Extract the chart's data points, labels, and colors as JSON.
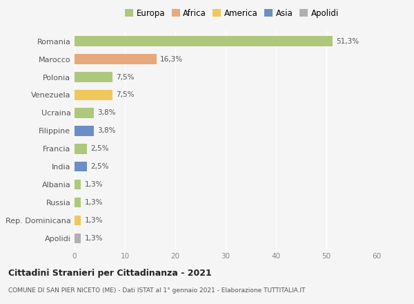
{
  "categories": [
    "Romania",
    "Marocco",
    "Polonia",
    "Venezuela",
    "Ucraina",
    "Filippine",
    "Francia",
    "India",
    "Albania",
    "Russia",
    "Rep. Dominicana",
    "Apolidi"
  ],
  "values": [
    51.3,
    16.3,
    7.5,
    7.5,
    3.8,
    3.8,
    2.5,
    2.5,
    1.3,
    1.3,
    1.3,
    1.3
  ],
  "labels": [
    "51,3%",
    "16,3%",
    "7,5%",
    "7,5%",
    "3,8%",
    "3,8%",
    "2,5%",
    "2,5%",
    "1,3%",
    "1,3%",
    "1,3%",
    "1,3%"
  ],
  "colors": [
    "#adc87a",
    "#e8a87c",
    "#adc87a",
    "#f0c75a",
    "#adc87a",
    "#6b8fc4",
    "#adc87a",
    "#6b8fc4",
    "#adc87a",
    "#adc87a",
    "#f0c75a",
    "#b0b0b0"
  ],
  "legend_labels": [
    "Europa",
    "Africa",
    "America",
    "Asia",
    "Apolidi"
  ],
  "legend_colors": [
    "#adc87a",
    "#e8a87c",
    "#f0c75a",
    "#6b8fc4",
    "#b0b0b0"
  ],
  "xlim": [
    0,
    60
  ],
  "xticks": [
    0,
    10,
    20,
    30,
    40,
    50,
    60
  ],
  "title": "Cittadini Stranieri per Cittadinanza - 2021",
  "subtitle": "COMUNE DI SAN PIER NICETO (ME) - Dati ISTAT al 1° gennaio 2021 - Elaborazione TUTTITALIA.IT",
  "bg_color": "#f5f5f5",
  "bar_height": 0.55
}
